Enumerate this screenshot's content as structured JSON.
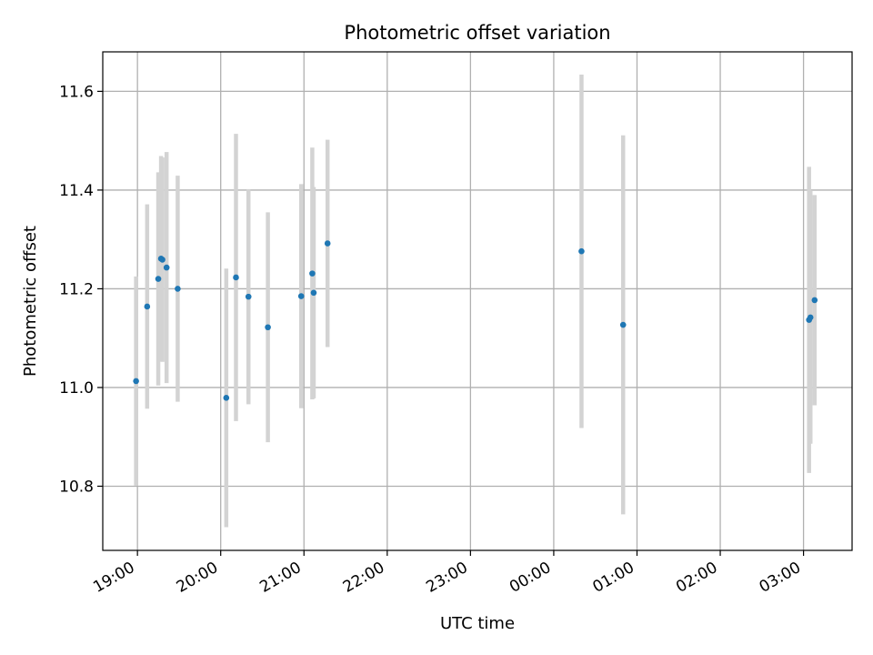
{
  "chart_data": {
    "type": "scatter",
    "title": "Photometric offset variation",
    "xlabel": "UTC time",
    "ylabel": "Photometric offset",
    "xlim": [
      "18:35",
      "03:35"
    ],
    "ylim": [
      10.67,
      11.68
    ],
    "grid": true,
    "x_ticks": [
      "19:00",
      "20:00",
      "21:00",
      "22:00",
      "23:00",
      "00:00",
      "01:00",
      "02:00",
      "03:00"
    ],
    "y_ticks": [
      "10.8",
      "11.0",
      "11.2",
      "11.4",
      "11.6"
    ],
    "colors": {
      "point": "#1f77b4",
      "errorbar": "#d3d3d3",
      "grid": "#b0b0b0"
    },
    "points": [
      {
        "x": "18:59",
        "y": 11.013,
        "err": 0.212
      },
      {
        "x": "19:07",
        "y": 11.164,
        "err": 0.207
      },
      {
        "x": "19:15",
        "y": 11.22,
        "err": 0.216
      },
      {
        "x": "19:17",
        "y": 11.261,
        "err": 0.208
      },
      {
        "x": "19:18",
        "y": 11.259,
        "err": 0.207
      },
      {
        "x": "19:21",
        "y": 11.243,
        "err": 0.234
      },
      {
        "x": "19:29",
        "y": 11.2,
        "err": 0.229
      },
      {
        "x": "20:04",
        "y": 10.979,
        "err": 0.262
      },
      {
        "x": "20:11",
        "y": 11.223,
        "err": 0.291
      },
      {
        "x": "20:20",
        "y": 11.184,
        "err": 0.218
      },
      {
        "x": "20:34",
        "y": 11.122,
        "err": 0.233
      },
      {
        "x": "20:58",
        "y": 11.185,
        "err": 0.227
      },
      {
        "x": "21:06",
        "y": 11.231,
        "err": 0.255
      },
      {
        "x": "21:07",
        "y": 11.192,
        "err": 0.214
      },
      {
        "x": "21:17",
        "y": 11.292,
        "err": 0.21
      },
      {
        "x": "00:20",
        "y": 11.276,
        "err": 0.358
      },
      {
        "x": "00:50",
        "y": 11.127,
        "err": 0.384
      },
      {
        "x": "03:04",
        "y": 11.137,
        "err": 0.31
      },
      {
        "x": "03:05",
        "y": 11.142,
        "err": 0.256
      },
      {
        "x": "03:08",
        "y": 11.177,
        "err": 0.213
      }
    ]
  }
}
